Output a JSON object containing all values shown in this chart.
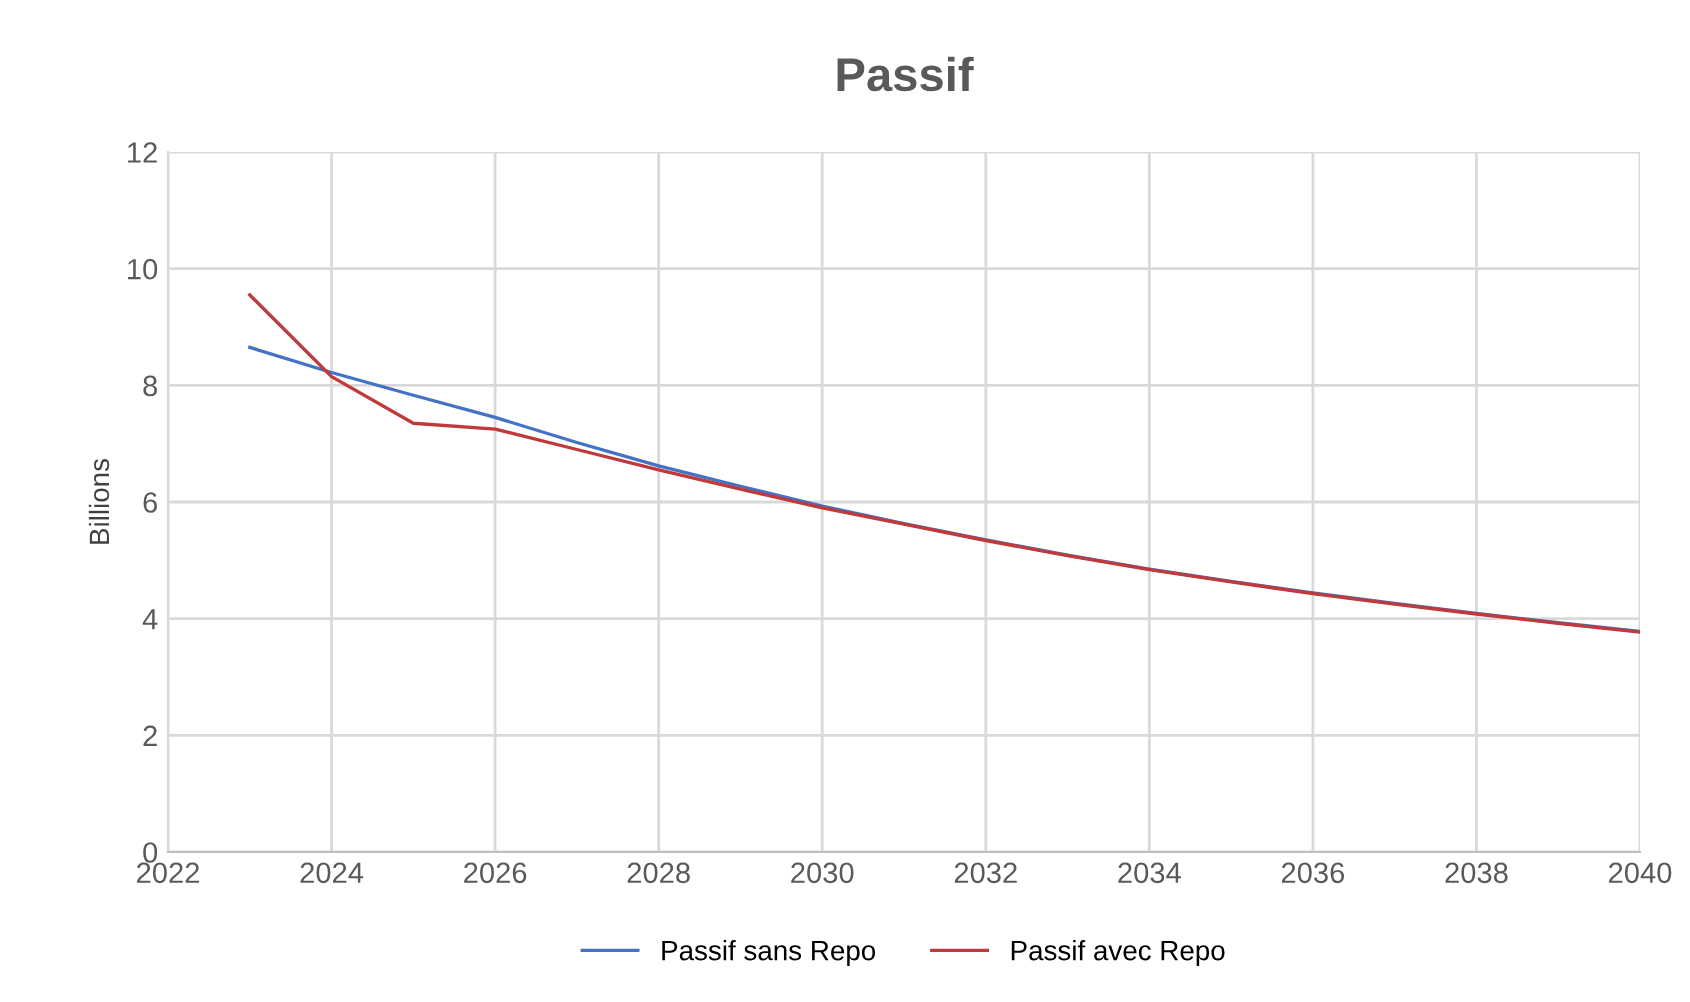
{
  "chart_data": {
    "type": "line",
    "title": "Passif",
    "ylabel": "Billions",
    "x": [
      2023,
      2024,
      2025,
      2026,
      2027,
      2028,
      2029,
      2030,
      2031,
      2032,
      2033,
      2034,
      2035,
      2036,
      2037,
      2038,
      2039,
      2040
    ],
    "series": [
      {
        "name": "Passif sans Repo",
        "color": "#4472c4",
        "values": [
          8.65,
          8.22,
          7.83,
          7.45,
          7.02,
          6.62,
          6.27,
          5.93,
          5.63,
          5.35,
          5.09,
          4.85,
          4.64,
          4.44,
          4.26,
          4.09,
          3.93,
          3.78
        ]
      },
      {
        "name": "Passif avec Repo",
        "color": "#c0393b",
        "values": [
          9.55,
          8.15,
          7.35,
          7.25,
          6.9,
          6.55,
          6.22,
          5.9,
          5.62,
          5.34,
          5.08,
          4.84,
          4.63,
          4.43,
          4.25,
          4.08,
          3.92,
          3.77
        ]
      }
    ],
    "xlim": [
      2022,
      2040
    ],
    "xticks": [
      2022,
      2024,
      2026,
      2028,
      2030,
      2032,
      2034,
      2036,
      2038,
      2040
    ],
    "ylim": [
      0,
      12
    ],
    "yticks": [
      0,
      2,
      4,
      6,
      8,
      10,
      12
    ],
    "grid": true,
    "legend": "bottom",
    "marker": "none",
    "line_style": "solid"
  }
}
